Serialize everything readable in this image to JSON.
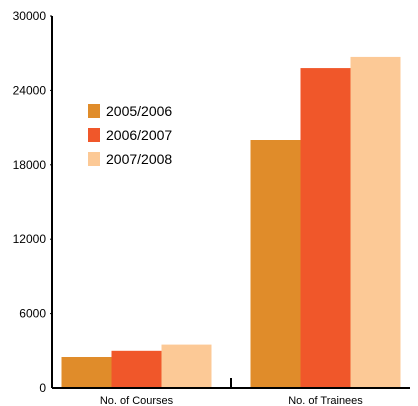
{
  "chart_data": {
    "type": "bar",
    "categories": [
      "No. of Courses",
      "No. of Trainees"
    ],
    "series": [
      {
        "name": "2005/2006",
        "color": "#e08c2a",
        "values": [
          2500,
          20000
        ]
      },
      {
        "name": "2006/2007",
        "color": "#f0572a",
        "values": [
          3000,
          25800
        ]
      },
      {
        "name": "2007/2008",
        "color": "#fcc996",
        "values": [
          3500,
          26700
        ]
      }
    ],
    "yticks": [
      0,
      6000,
      12000,
      18000,
      24000,
      30000
    ],
    "ylim": [
      0,
      30000
    ],
    "grid": false,
    "legend_position": "upper-left"
  }
}
